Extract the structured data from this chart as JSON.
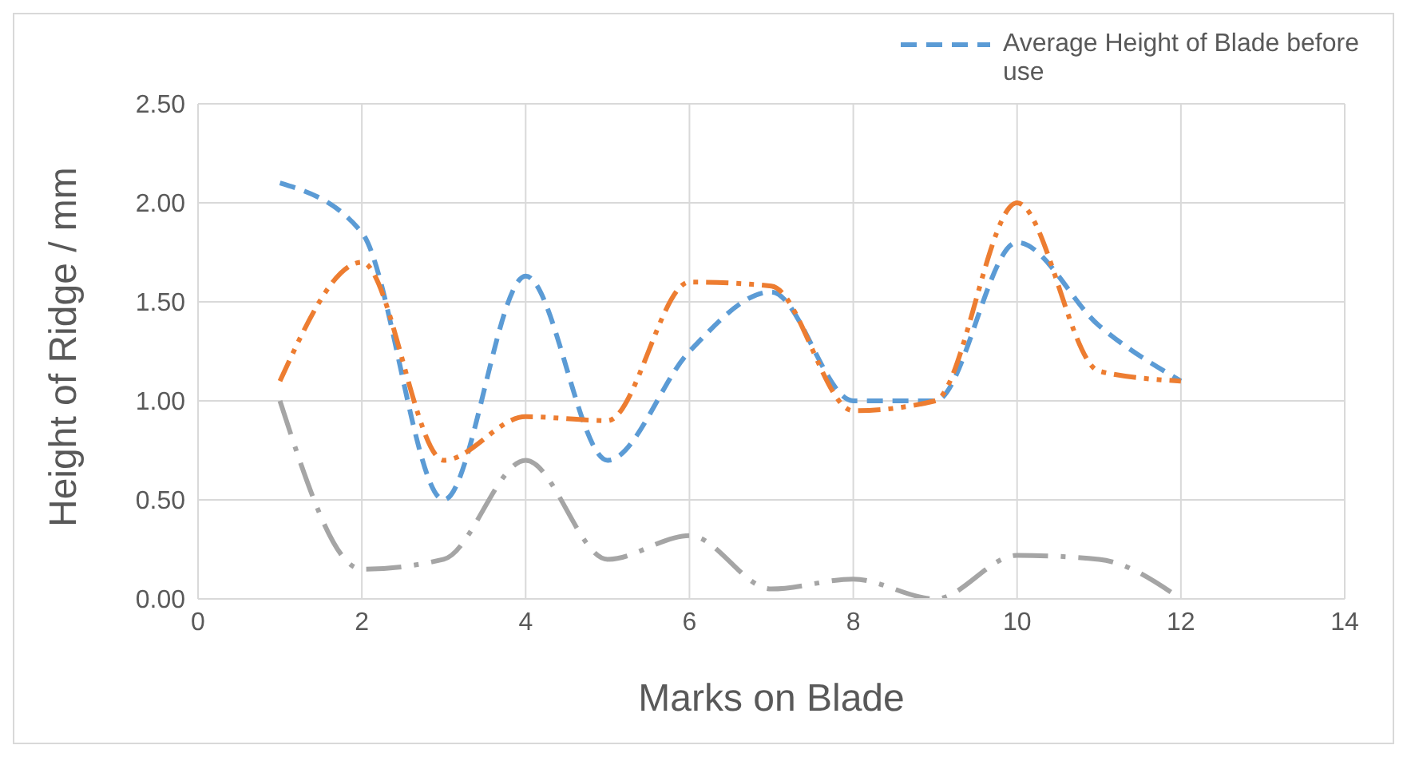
{
  "chart_data": {
    "type": "line",
    "xlabel": "Marks on Blade",
    "ylabel": "Height of Ridge / mm",
    "x": [
      1,
      2,
      3,
      4,
      5,
      6,
      7,
      8,
      9,
      10,
      11,
      12
    ],
    "series": [
      {
        "name": "Average Height of Blade before use",
        "color": "#5b9bd5",
        "line_style": "dashed",
        "values": [
          2.1,
          1.85,
          0.5,
          1.63,
          0.7,
          1.25,
          1.55,
          1.0,
          1.0,
          1.8,
          1.38,
          1.1
        ]
      },
      {
        "color": "#ed7d31",
        "line_style": "dashed",
        "values": [
          1.1,
          1.7,
          0.7,
          0.92,
          0.9,
          1.6,
          1.58,
          0.95,
          1.0,
          2.0,
          1.15,
          1.1
        ]
      },
      {
        "color": "#a5a5a5",
        "line_style": "dashed",
        "values": [
          1.0,
          0.15,
          0.2,
          0.7,
          0.2,
          0.32,
          0.05,
          0.1,
          0.0,
          0.22,
          0.2,
          0.0
        ]
      }
    ],
    "xlim": [
      0,
      14
    ],
    "xticks": [
      0,
      2,
      4,
      6,
      8,
      10,
      12,
      14
    ],
    "ylim": [
      0,
      2.5
    ],
    "yticks": [
      {
        "value": 0,
        "label": "0.00"
      },
      {
        "value": 0.5,
        "label": "0.50"
      },
      {
        "value": 1,
        "label": "1.00"
      },
      {
        "value": 1.5,
        "label": "1.50"
      },
      {
        "value": 2,
        "label": "2.00"
      },
      {
        "value": 2.5,
        "label": "2.50"
      }
    ],
    "grid": true,
    "legend": "top right",
    "marker": "none"
  }
}
